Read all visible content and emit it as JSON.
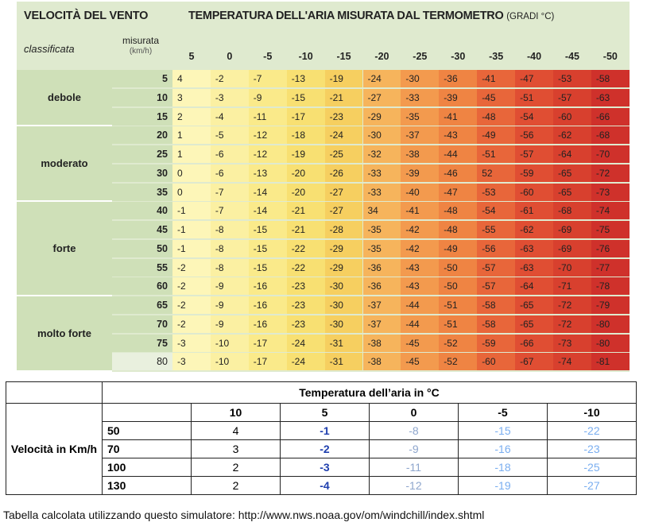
{
  "top_table": {
    "title_left": "VELOCITÀ DEL VENTO",
    "title_right": "TEMPERATURA DELL'ARIA MISURATA DAL TERMOMETRO",
    "title_right_unit": "(GRADI °C)",
    "label_classificata": "classificata",
    "label_misurata": "misurata",
    "label_unit": "(km/h)",
    "temperatures": [
      "5",
      "0",
      "-5",
      "-10",
      "-15",
      "-20",
      "-25",
      "-30",
      "-35",
      "-40",
      "-45",
      "-50"
    ],
    "categories": [
      {
        "name": "debole",
        "rows": [
          {
            "speed": "5",
            "values": [
              "4",
              "-2",
              "-7",
              "-13",
              "-19",
              "-24",
              "-30",
              "-36",
              "-41",
              "-47",
              "-53",
              "-58"
            ]
          },
          {
            "speed": "10",
            "values": [
              "3",
              "-3",
              "-9",
              "-15",
              "-21",
              "-27",
              "-33",
              "-39",
              "-45",
              "-51",
              "-57",
              "-63"
            ]
          },
          {
            "speed": "15",
            "values": [
              "2",
              "-4",
              "-11",
              "-17",
              "-23",
              "-29",
              "-35",
              "-41",
              "-48",
              "-54",
              "-60",
              "-66"
            ]
          }
        ]
      },
      {
        "name": "moderato",
        "rows": [
          {
            "speed": "20",
            "values": [
              "1",
              "-5",
              "-12",
              "-18",
              "-24",
              "-30",
              "-37",
              "-43",
              "-49",
              "-56",
              "-62",
              "-68"
            ]
          },
          {
            "speed": "25",
            "values": [
              "1",
              "-6",
              "-12",
              "-19",
              "-25",
              "-32",
              "-38",
              "-44",
              "-51",
              "-57",
              "-64",
              "-70"
            ]
          },
          {
            "speed": "30",
            "values": [
              "0",
              "-6",
              "-13",
              "-20",
              "-26",
              "-33",
              "-39",
              "-46",
              "52",
              "-59",
              "-65",
              "-72"
            ]
          },
          {
            "speed": "35",
            "values": [
              "0",
              "-7",
              "-14",
              "-20",
              "-27",
              "-33",
              "-40",
              "-47",
              "-53",
              "-60",
              "-65",
              "-73"
            ]
          }
        ]
      },
      {
        "name": "forte",
        "rows": [
          {
            "speed": "40",
            "values": [
              "-1",
              "-7",
              "-14",
              "-21",
              "-27",
              "34",
              "-41",
              "-48",
              "-54",
              "-61",
              "-68",
              "-74"
            ]
          },
          {
            "speed": "45",
            "values": [
              "-1",
              "-8",
              "-15",
              "-21",
              "-28",
              "-35",
              "-42",
              "-48",
              "-55",
              "-62",
              "-69",
              "-75"
            ]
          },
          {
            "speed": "50",
            "values": [
              "-1",
              "-8",
              "-15",
              "-22",
              "-29",
              "-35",
              "-42",
              "-49",
              "-56",
              "-63",
              "-69",
              "-76"
            ]
          },
          {
            "speed": "55",
            "values": [
              "-2",
              "-8",
              "-15",
              "-22",
              "-29",
              "-36",
              "-43",
              "-50",
              "-57",
              "-63",
              "-70",
              "-77"
            ]
          },
          {
            "speed": "60",
            "values": [
              "-2",
              "-9",
              "-16",
              "-23",
              "-30",
              "-36",
              "-43",
              "-50",
              "-57",
              "-64",
              "-71",
              "-78"
            ]
          }
        ]
      },
      {
        "name": "molto forte",
        "rows": [
          {
            "speed": "65",
            "values": [
              "-2",
              "-9",
              "-16",
              "-23",
              "-30",
              "-37",
              "-44",
              "-51",
              "-58",
              "-65",
              "-72",
              "-79"
            ]
          },
          {
            "speed": "70",
            "values": [
              "-2",
              "-9",
              "-16",
              "-23",
              "-30",
              "-37",
              "-44",
              "-51",
              "-58",
              "-65",
              "-72",
              "-80"
            ]
          },
          {
            "speed": "75",
            "values": [
              "-3",
              "-10",
              "-17",
              "-24",
              "-31",
              "-38",
              "-45",
              "-52",
              "-59",
              "-66",
              "-73",
              "-80"
            ]
          },
          {
            "speed": "80",
            "values": [
              "-3",
              "-10",
              "-17",
              "-24",
              "-31",
              "-38",
              "-45",
              "-52",
              "-60",
              "-67",
              "-74",
              "-81"
            ]
          }
        ]
      }
    ],
    "column_colors": [
      "#fdf6b8",
      "#fbf0a2",
      "#faea8a",
      "#f8e072",
      "#f6cf60",
      "#f6b45c",
      "#f39a4e",
      "#ef8443",
      "#e8663a",
      "#e04e33",
      "#d8402e",
      "#cf312b"
    ]
  },
  "bottom_table": {
    "header": "Temperatura dell’aria in °C",
    "row_label": "Velocità in Km/h",
    "temperatures": [
      "10",
      "5",
      "0",
      "-5",
      "-10"
    ],
    "rows": [
      {
        "speed": "50",
        "values": [
          "4",
          "-1",
          "-8",
          "-15",
          "-22"
        ]
      },
      {
        "speed": "70",
        "values": [
          "3",
          "-2",
          "-9",
          "-16",
          "-23"
        ]
      },
      {
        "speed": "100",
        "values": [
          "2",
          "-3",
          "-11",
          "-18",
          "-25"
        ]
      },
      {
        "speed": "130",
        "values": [
          "2",
          "-4",
          "-12",
          "-19",
          "-27"
        ]
      }
    ]
  },
  "footer": "Tabella calcolata utilizzando questo simulatore: http://www.nws.noaa.gov/om/windchill/index.shtml"
}
